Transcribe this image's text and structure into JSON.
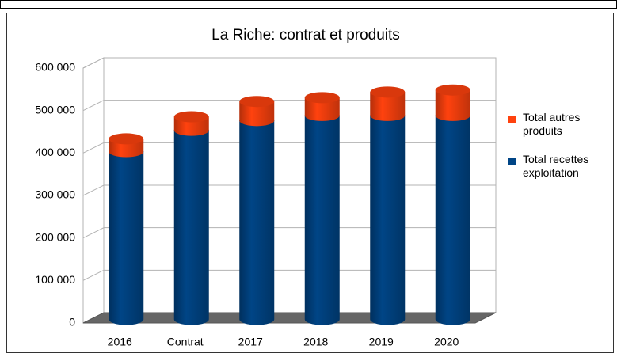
{
  "chart_data": {
    "type": "bar",
    "stacked": true,
    "title": "La Riche: contrat et produits",
    "categories": [
      "2016",
      "Contrat",
      "2017",
      "2018",
      "2019",
      "2020"
    ],
    "series": [
      {
        "name": "Total recettes exploitation",
        "color": "#004586",
        "values": [
          395000,
          445000,
          468000,
          480000,
          480000,
          480000
        ]
      },
      {
        "name": "Total autres produits",
        "color": "#ff420e",
        "values": [
          30000,
          32000,
          45000,
          42000,
          55000,
          60000
        ]
      }
    ],
    "ylim": [
      0,
      600000
    ],
    "yticks": [
      {
        "value": 0,
        "label": "0"
      },
      {
        "value": 100000,
        "label": "100 000"
      },
      {
        "value": 200000,
        "label": "200 000"
      },
      {
        "value": 300000,
        "label": "300 000"
      },
      {
        "value": 400000,
        "label": "400 000"
      },
      {
        "value": 500000,
        "label": "500 000"
      },
      {
        "value": 600000,
        "label": "600 000"
      }
    ],
    "grid": true,
    "legend": "right"
  }
}
